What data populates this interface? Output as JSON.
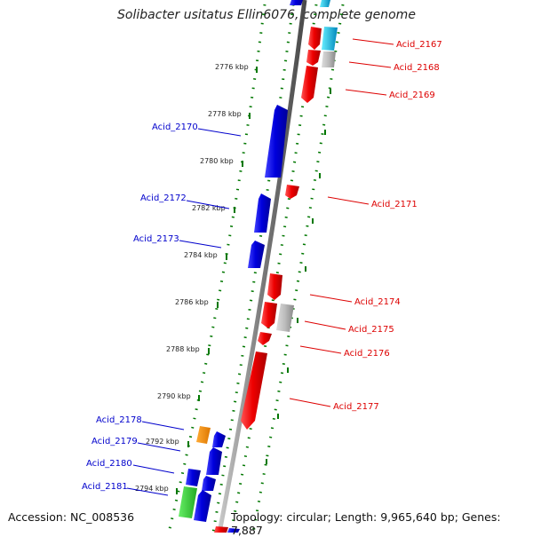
{
  "title": "Solibacter usitatus Ellin6076, complete genome",
  "accession": "Accession: NC_008536",
  "topology": "Topology: circular; Length: 9,965,640 bp; Genes: 7,887",
  "kbp_ticks": [
    "2776 kbp",
    "2778 kbp",
    "2780 kbp",
    "2782 kbp",
    "2784 kbp",
    "2786 kbp",
    "2788 kbp",
    "2790 kbp",
    "2792 kbp",
    "2794 kbp"
  ],
  "genes_forward": [
    "Acid_2167",
    "Acid_2168",
    "Acid_2169",
    "Acid_2171",
    "Acid_2174",
    "Acid_2175",
    "Acid_2176",
    "Acid_2177"
  ],
  "genes_reverse": [
    "Acid_2170",
    "Acid_2172",
    "Acid_2173",
    "Acid_2178",
    "Acid_2179",
    "Acid_2180",
    "Acid_2181"
  ],
  "colors": {
    "forward_gene": "#ee0000",
    "reverse_gene": "#0000dd",
    "tick": "#007700",
    "backbone": "#808080",
    "forward_label": "#dd0000",
    "reverse_label": "#0000cc"
  }
}
